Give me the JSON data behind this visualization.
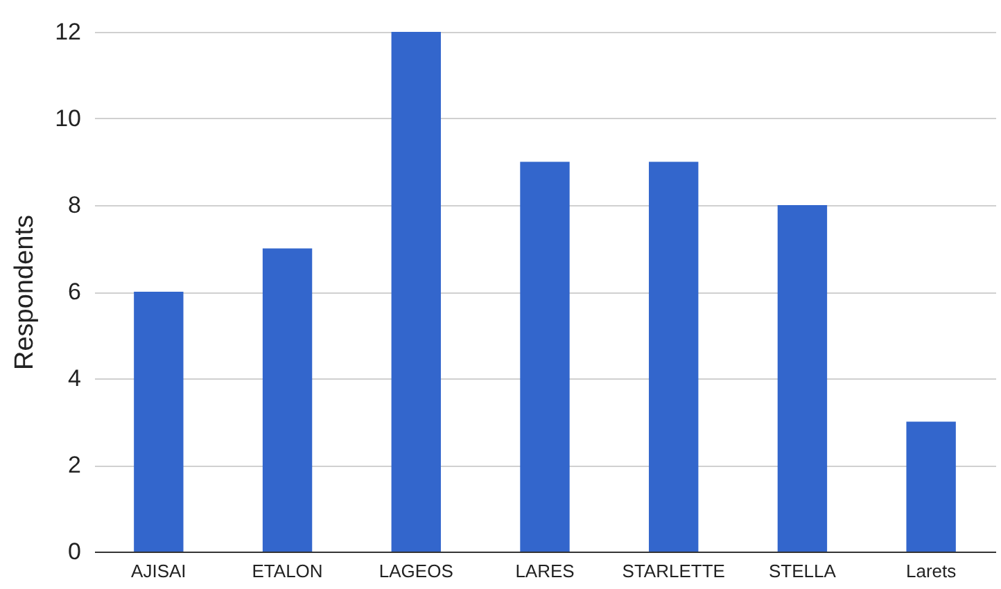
{
  "chart_data": {
    "type": "bar",
    "ylabel": "Respondents",
    "categories": [
      "AJISAI",
      "ETALON",
      "LAGEOS",
      "LARES",
      "STARLETTE",
      "STELLA",
      "Larets"
    ],
    "values": [
      6,
      7,
      12,
      9,
      9,
      8,
      3
    ],
    "color": "#3366cc",
    "ylim": [
      0,
      12
    ],
    "yticks": [
      0,
      2,
      4,
      6,
      8,
      10,
      12
    ],
    "grid": "y"
  }
}
